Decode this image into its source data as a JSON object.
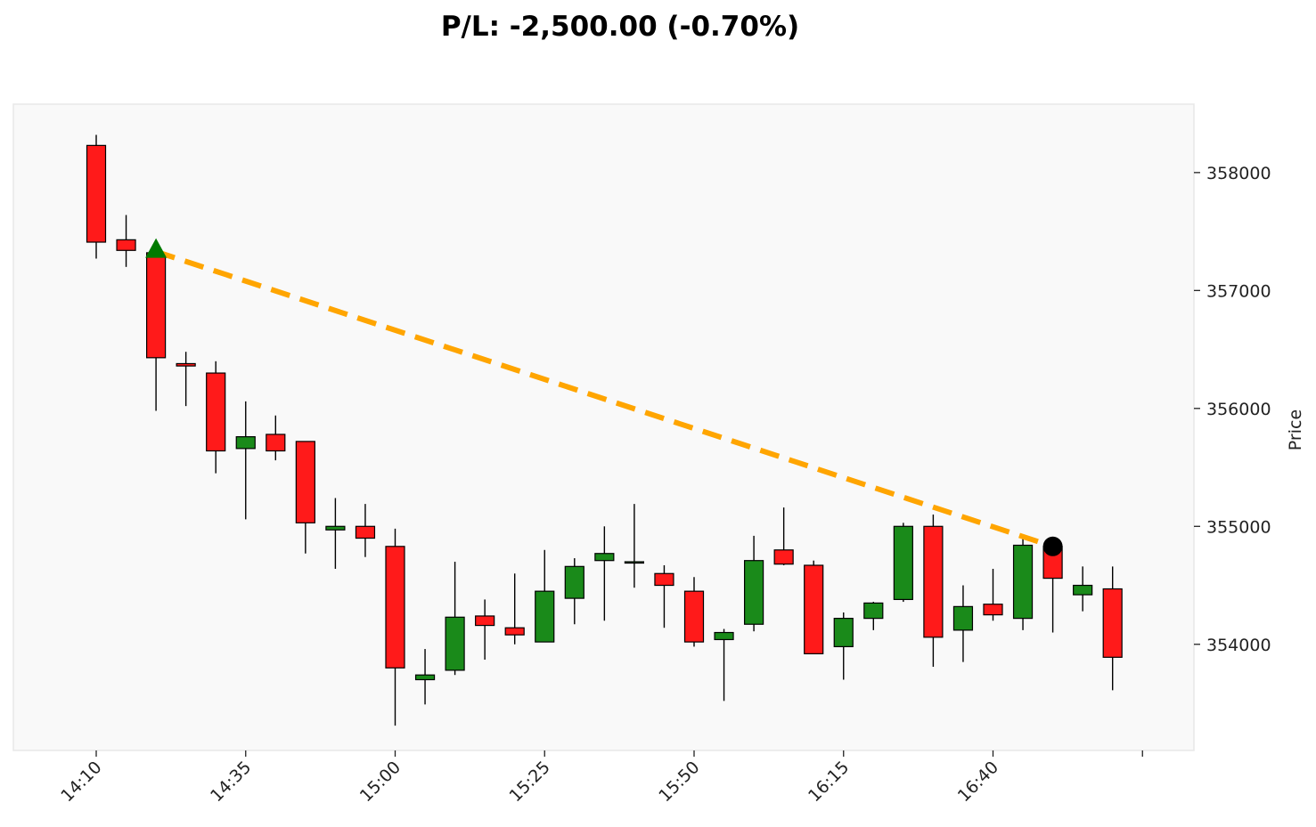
{
  "chart_data": {
    "type": "candlestick",
    "title": "P/L: -2,500.00 (-0.70%)",
    "xlabel": "",
    "ylabel": "Price",
    "y_axis_side": "right",
    "ylim": [
      353100,
      358580
    ],
    "yticks": [
      354000,
      355000,
      356000,
      357000,
      358000
    ],
    "xtick_labels": [
      "14:10",
      "14:35",
      "15:00",
      "15:25",
      "15:50",
      "16:15",
      "16:40"
    ],
    "xtick_indices": [
      0,
      5,
      10,
      15,
      20,
      25,
      30
    ],
    "xtick_extra_index": 35,
    "grid": false,
    "colors": {
      "up": "#1a8a1a",
      "down": "#ff1a1a",
      "outline": "#000000",
      "trade_line": "#ffa500",
      "entry_marker": "#007a00",
      "exit_marker": "#000000",
      "plot_background": "#f9f9f9",
      "plot_border": "#e8e8e8"
    },
    "candles": [
      {
        "time": "14:10",
        "open": 358230,
        "high": 358320,
        "low": 357270,
        "close": 357410
      },
      {
        "time": "14:15",
        "open": 357430,
        "high": 357640,
        "low": 357200,
        "close": 357340
      },
      {
        "time": "14:20",
        "open": 357320,
        "high": 357340,
        "low": 355980,
        "close": 356430
      },
      {
        "time": "14:25",
        "open": 356380,
        "high": 356480,
        "low": 356020,
        "close": 356360
      },
      {
        "time": "14:30",
        "open": 356300,
        "high": 356400,
        "low": 355450,
        "close": 355640
      },
      {
        "time": "14:35",
        "open": 355660,
        "high": 356060,
        "low": 355060,
        "close": 355760
      },
      {
        "time": "14:40",
        "open": 355780,
        "high": 355940,
        "low": 355560,
        "close": 355640
      },
      {
        "time": "14:45",
        "open": 355720,
        "high": 355720,
        "low": 354770,
        "close": 355030
      },
      {
        "time": "14:50",
        "open": 354970,
        "high": 355240,
        "low": 354640,
        "close": 355000
      },
      {
        "time": "14:55",
        "open": 355000,
        "high": 355190,
        "low": 354740,
        "close": 354900
      },
      {
        "time": "15:00",
        "open": 354830,
        "high": 354980,
        "low": 353310,
        "close": 353800
      },
      {
        "time": "15:05",
        "open": 353700,
        "high": 353960,
        "low": 353490,
        "close": 353740
      },
      {
        "time": "15:10",
        "open": 353780,
        "high": 354700,
        "low": 353740,
        "close": 354230
      },
      {
        "time": "15:15",
        "open": 354240,
        "high": 354380,
        "low": 353870,
        "close": 354160
      },
      {
        "time": "15:20",
        "open": 354140,
        "high": 354600,
        "low": 354000,
        "close": 354080
      },
      {
        "time": "15:25",
        "open": 354020,
        "high": 354800,
        "low": 354020,
        "close": 354450
      },
      {
        "time": "15:30",
        "open": 354390,
        "high": 354730,
        "low": 354170,
        "close": 354660
      },
      {
        "time": "15:35",
        "open": 354710,
        "high": 355000,
        "low": 354200,
        "close": 354770
      },
      {
        "time": "15:40",
        "open": 354700,
        "high": 355190,
        "low": 354480,
        "close": 354700
      },
      {
        "time": "15:45",
        "open": 354600,
        "high": 354670,
        "low": 354140,
        "close": 354500
      },
      {
        "time": "15:50",
        "open": 354450,
        "high": 354570,
        "low": 353980,
        "close": 354020
      },
      {
        "time": "15:55",
        "open": 354040,
        "high": 354130,
        "low": 353520,
        "close": 354100
      },
      {
        "time": "16:00",
        "open": 354170,
        "high": 354920,
        "low": 354110,
        "close": 354710
      },
      {
        "time": "16:05",
        "open": 354800,
        "high": 355160,
        "low": 354670,
        "close": 354680
      },
      {
        "time": "16:10",
        "open": 354670,
        "high": 354710,
        "low": 353920,
        "close": 353920
      },
      {
        "time": "16:15",
        "open": 353980,
        "high": 354270,
        "low": 353700,
        "close": 354220
      },
      {
        "time": "16:20",
        "open": 354220,
        "high": 354360,
        "low": 354120,
        "close": 354350
      },
      {
        "time": "16:25",
        "open": 354380,
        "high": 355030,
        "low": 354360,
        "close": 355000
      },
      {
        "time": "16:30",
        "open": 355000,
        "high": 355100,
        "low": 353810,
        "close": 354060
      },
      {
        "time": "16:35",
        "open": 354120,
        "high": 354500,
        "low": 353850,
        "close": 354320
      },
      {
        "time": "16:40",
        "open": 354340,
        "high": 354640,
        "low": 354200,
        "close": 354250
      },
      {
        "time": "16:45",
        "open": 354220,
        "high": 354900,
        "low": 354120,
        "close": 354840
      },
      {
        "time": "16:50",
        "open": 354830,
        "high": 354870,
        "low": 354100,
        "close": 354560
      },
      {
        "time": "16:55",
        "open": 354420,
        "high": 354660,
        "low": 354280,
        "close": 354500
      },
      {
        "time": "17:00",
        "open": 354470,
        "high": 354660,
        "low": 353610,
        "close": 353890
      }
    ],
    "trade": {
      "entry": {
        "time": "14:20",
        "price": 357330,
        "marker": "triangle-up"
      },
      "exit": {
        "time": "16:50",
        "price": 354830,
        "marker": "circle"
      }
    }
  }
}
